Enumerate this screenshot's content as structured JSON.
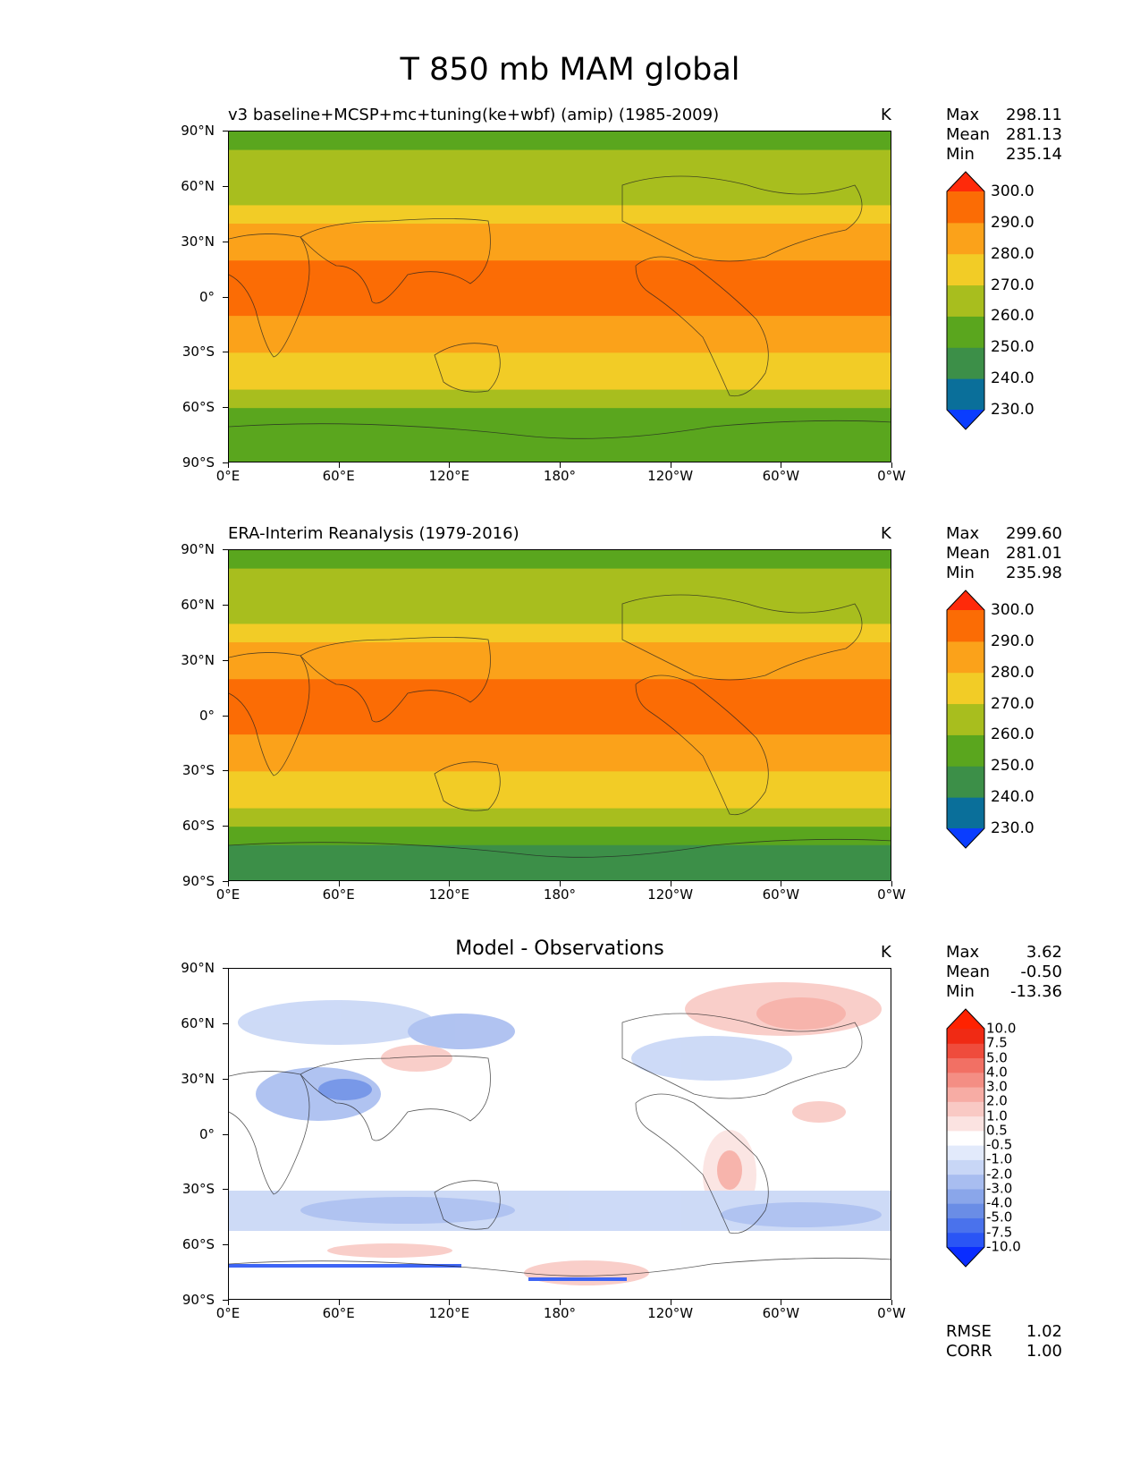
{
  "figure_title": "T 850 mb MAM global",
  "chart_data": [
    {
      "type": "heatmap",
      "panel": "test",
      "title": "v3 baseline+MCSP+mc+tuning(ke+wbf) (amip) (1985-2009)",
      "units": "K",
      "stats": {
        "max": "298.11",
        "mean": "281.13",
        "min": "235.14"
      },
      "colorbar_levels": [
        "230.0",
        "240.0",
        "250.0",
        "260.0",
        "270.0",
        "280.0",
        "290.0",
        "300.0"
      ],
      "colorbar_colors": [
        "#0a3dff",
        "#0a6f9a",
        "#3c8f48",
        "#5aa61e",
        "#a8be1e",
        "#f2cc26",
        "#fba21a",
        "#fb6c05",
        "#ff2a0a"
      ],
      "xlabel_ticks": [
        "0°E",
        "60°E",
        "120°E",
        "180°",
        "120°W",
        "60°W",
        "0°W"
      ],
      "ylabel_ticks": [
        "90°N",
        "60°N",
        "30°N",
        "0°",
        "30°S",
        "60°S",
        "90°S"
      ],
      "lat_profile": [
        {
          "lat": 90,
          "value": 255
        },
        {
          "lat": 80,
          "value": 258
        },
        {
          "lat": 70,
          "value": 262
        },
        {
          "lat": 60,
          "value": 266
        },
        {
          "lat": 50,
          "value": 271
        },
        {
          "lat": 40,
          "value": 277
        },
        {
          "lat": 30,
          "value": 283
        },
        {
          "lat": 20,
          "value": 288
        },
        {
          "lat": 10,
          "value": 292
        },
        {
          "lat": 0,
          "value": 292
        },
        {
          "lat": -10,
          "value": 291
        },
        {
          "lat": -20,
          "value": 286
        },
        {
          "lat": -30,
          "value": 280
        },
        {
          "lat": -40,
          "value": 274
        },
        {
          "lat": -50,
          "value": 266
        },
        {
          "lat": -60,
          "value": 260
        },
        {
          "lat": -70,
          "value": 254
        },
        {
          "lat": -80,
          "value": 252
        },
        {
          "lat": -90,
          "value": 252
        }
      ]
    },
    {
      "type": "heatmap",
      "panel": "reference",
      "title": "ERA-Interim Reanalysis (1979-2016)",
      "units": "K",
      "stats": {
        "max": "299.60",
        "mean": "281.01",
        "min": "235.98"
      },
      "colorbar_levels": [
        "230.0",
        "240.0",
        "250.0",
        "260.0",
        "270.0",
        "280.0",
        "290.0",
        "300.0"
      ],
      "colorbar_colors": [
        "#0a3dff",
        "#0a6f9a",
        "#3c8f48",
        "#5aa61e",
        "#a8be1e",
        "#f2cc26",
        "#fba21a",
        "#fb6c05",
        "#ff2a0a"
      ],
      "xlabel_ticks": [
        "0°E",
        "60°E",
        "120°E",
        "180°",
        "120°W",
        "60°W",
        "0°W"
      ],
      "ylabel_ticks": [
        "90°N",
        "60°N",
        "30°N",
        "0°",
        "30°S",
        "60°S",
        "90°S"
      ],
      "lat_profile": [
        {
          "lat": 90,
          "value": 255
        },
        {
          "lat": 80,
          "value": 258
        },
        {
          "lat": 70,
          "value": 262
        },
        {
          "lat": 60,
          "value": 266
        },
        {
          "lat": 50,
          "value": 271
        },
        {
          "lat": 40,
          "value": 277
        },
        {
          "lat": 30,
          "value": 283
        },
        {
          "lat": 20,
          "value": 288
        },
        {
          "lat": 10,
          "value": 292
        },
        {
          "lat": 0,
          "value": 292
        },
        {
          "lat": -10,
          "value": 291
        },
        {
          "lat": -20,
          "value": 286
        },
        {
          "lat": -30,
          "value": 280
        },
        {
          "lat": -40,
          "value": 274
        },
        {
          "lat": -50,
          "value": 266
        },
        {
          "lat": -60,
          "value": 260
        },
        {
          "lat": -70,
          "value": 252
        },
        {
          "lat": -80,
          "value": 245
        },
        {
          "lat": -90,
          "value": 238
        }
      ]
    },
    {
      "type": "heatmap",
      "panel": "difference",
      "title": "Model - Observations",
      "units": "K",
      "stats": {
        "max": "3.62",
        "mean": "-0.50",
        "min": "-13.36"
      },
      "colorbar_levels": [
        "-10.0",
        "-7.5",
        "-5.0",
        "-4.0",
        "-3.0",
        "-2.0",
        "-1.0",
        "-0.5",
        "0.5",
        "1.0",
        "2.0",
        "3.0",
        "4.0",
        "5.0",
        "7.5",
        "10.0"
      ],
      "colorbar_colors": [
        "#0a2dff",
        "#2a55f5",
        "#4a72ec",
        "#6a8de6",
        "#8aa6ea",
        "#a8bdf0",
        "#c8d6f6",
        "#e2eafb",
        "#ffffff",
        "#fbe3e1",
        "#f9c9c4",
        "#f7aca4",
        "#f48e84",
        "#f27064",
        "#ef4c3c",
        "#f02a14",
        "#ff2200"
      ],
      "xlabel_ticks": [
        "0°E",
        "60°E",
        "120°E",
        "180°",
        "120°W",
        "60°W",
        "0°W"
      ],
      "ylabel_ticks": [
        "90°N",
        "60°N",
        "30°N",
        "0°",
        "30°S",
        "60°S",
        "90°S"
      ],
      "rmse": "1.02",
      "corr": "1.00"
    }
  ],
  "labels": {
    "max": "Max",
    "mean": "Mean",
    "min": "Min",
    "rmse": "RMSE",
    "corr": "CORR"
  }
}
